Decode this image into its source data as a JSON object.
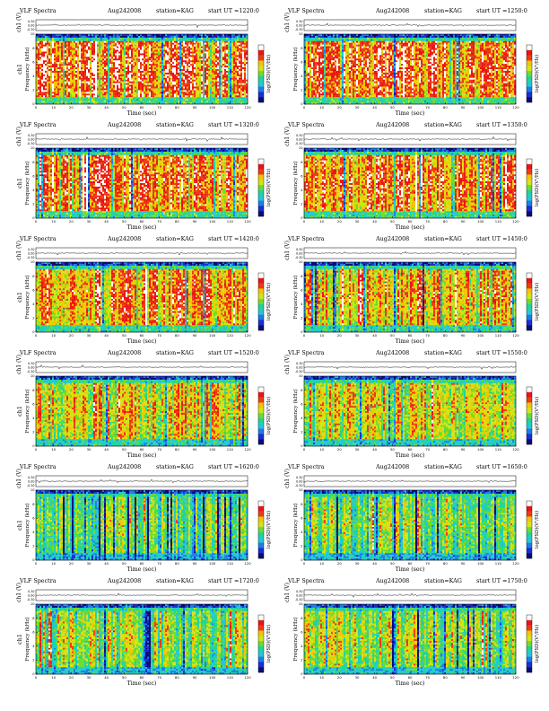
{
  "chart_data": [
    {
      "type": "heatmap",
      "title": "VLF  Spectra",
      "date": "Aug242008",
      "station": "station=KAG",
      "start_ut": "start  UT  =1220:0",
      "top_ylabel": "ch1 (V)",
      "top_ylim": [
        -0.3,
        0.3
      ],
      "top_yticks": [
        "0.30",
        "0.00",
        "-0.30"
      ],
      "ylabel": "Frequency  (kHz)",
      "ylim": [
        0,
        10
      ],
      "yticks": [
        "0",
        "2",
        "4",
        "6",
        "8",
        "10"
      ],
      "xlabel": "Time  (sec)",
      "xlim": [
        0,
        120
      ],
      "xticks": [
        "0",
        "10",
        "20",
        "30",
        "40",
        "50",
        "60",
        "70",
        "80",
        "90",
        "100",
        "110",
        "120"
      ],
      "colorbar_label": "log(PSD)(V²/Hz)",
      "colorbar_name": "ch1",
      "level": 0.85
    },
    {
      "type": "heatmap",
      "title": "VLF  Spectra",
      "date": "Aug242008",
      "station": "station=KAG",
      "start_ut": "start  UT  =1250:0",
      "top_ylabel": "ch1 (V)",
      "top_ylim": [
        -0.3,
        0.3
      ],
      "top_yticks": [
        "0.30",
        "0.00",
        "-0.30"
      ],
      "ylabel": "Frequency  (kHz)",
      "ylim": [
        0,
        10
      ],
      "yticks": [
        "0",
        "2",
        "4",
        "6",
        "8",
        "10"
      ],
      "xlabel": "Time  (sec)",
      "xlim": [
        0,
        120
      ],
      "xticks": [
        "0",
        "10",
        "20",
        "30",
        "40",
        "50",
        "60",
        "70",
        "80",
        "90",
        "100",
        "110",
        "120"
      ],
      "colorbar_label": "log(PSD)(V²/Hz)",
      "colorbar_name": "",
      "level": 0.83
    },
    {
      "type": "heatmap",
      "title": "VLF  Spectra",
      "date": "Aug242008",
      "station": "station=KAG",
      "start_ut": "start  UT  =1320:0",
      "top_ylabel": "ch1 (V)",
      "top_ylim": [
        -0.3,
        0.3
      ],
      "top_yticks": [
        "0.30",
        "0.00",
        "-0.30"
      ],
      "ylabel": "Frequency  (kHz)",
      "ylim": [
        0,
        10
      ],
      "yticks": [
        "0",
        "2",
        "4",
        "6",
        "8",
        "10"
      ],
      "xlabel": "Time  (sec)",
      "xlim": [
        0,
        120
      ],
      "xticks": [
        "0",
        "10",
        "20",
        "30",
        "40",
        "50",
        "60",
        "70",
        "80",
        "90",
        "100",
        "110",
        "120"
      ],
      "colorbar_label": "log(PSD)(V²/Hz)",
      "colorbar_name": "ch1",
      "level": 0.82
    },
    {
      "type": "heatmap",
      "title": "VLF  Spectra",
      "date": "Aug242008",
      "station": "station=KAG",
      "start_ut": "start  UT  =1350:0",
      "top_ylabel": "ch1 (V)",
      "top_ylim": [
        -0.3,
        0.3
      ],
      "top_yticks": [
        "0.30",
        "0.00",
        "-0.30"
      ],
      "ylabel": "Frequency  (kHz)",
      "ylim": [
        0,
        10
      ],
      "yticks": [
        "0",
        "2",
        "4",
        "6",
        "8",
        "10"
      ],
      "xlabel": "Time  (sec)",
      "xlim": [
        0,
        120
      ],
      "xticks": [
        "0",
        "10",
        "20",
        "30",
        "40",
        "50",
        "60",
        "70",
        "80",
        "90",
        "100",
        "110",
        "120"
      ],
      "colorbar_label": "log(PSD)(V²/Hz)",
      "colorbar_name": "",
      "level": 0.8
    },
    {
      "type": "heatmap",
      "title": "VLF  Spectra",
      "date": "Aug242008",
      "station": "station=KAG",
      "start_ut": "start  UT  =1420:0",
      "top_ylabel": "ch1 (V)",
      "top_ylim": [
        -0.3,
        0.3
      ],
      "top_yticks": [
        "0.30",
        "0.00",
        "-0.30"
      ],
      "ylabel": "Frequency  (kHz)",
      "ylim": [
        0,
        10
      ],
      "yticks": [
        "0",
        "2",
        "4",
        "6",
        "8",
        "10"
      ],
      "xlabel": "Time  (sec)",
      "xlim": [
        0,
        120
      ],
      "xticks": [
        "0",
        "10",
        "20",
        "30",
        "40",
        "50",
        "60",
        "70",
        "80",
        "90",
        "100",
        "110",
        "120"
      ],
      "colorbar_label": "log(PSD)(V²/Hz)",
      "colorbar_name": "ch1",
      "level": 0.76
    },
    {
      "type": "heatmap",
      "title": "VLF  Spectra",
      "date": "Aug242008",
      "station": "station=KAG",
      "start_ut": "start  UT  =1450:0",
      "top_ylabel": "ch1 (V)",
      "top_ylim": [
        -0.3,
        0.3
      ],
      "top_yticks": [
        "0.30",
        "0.00",
        "-0.30"
      ],
      "ylabel": "Frequency  (kHz)",
      "ylim": [
        0,
        10
      ],
      "yticks": [
        "0",
        "2",
        "4",
        "6",
        "8",
        "10"
      ],
      "xlabel": "Time  (sec)",
      "xlim": [
        0,
        120
      ],
      "xticks": [
        "0",
        "10",
        "20",
        "30",
        "40",
        "50",
        "60",
        "70",
        "80",
        "90",
        "100",
        "110",
        "120"
      ],
      "colorbar_label": "log(PSD)(V²/Hz)",
      "colorbar_name": "",
      "level": 0.72
    },
    {
      "type": "heatmap",
      "title": "VLF  Spectra",
      "date": "Aug242008",
      "station": "station=KAG",
      "start_ut": "start  UT  =1520:0",
      "top_ylabel": "ch1 (V)",
      "top_ylim": [
        -0.3,
        0.3
      ],
      "top_yticks": [
        "0.30",
        "0.00",
        "-0.30"
      ],
      "ylabel": "Frequency  (kHz)",
      "ylim": [
        0,
        10
      ],
      "yticks": [
        "0",
        "2",
        "4",
        "6",
        "8",
        "10"
      ],
      "xlabel": "Time  (sec)",
      "xlim": [
        0,
        120
      ],
      "xticks": [
        "0",
        "10",
        "20",
        "30",
        "40",
        "50",
        "60",
        "70",
        "80",
        "90",
        "100",
        "110",
        "120"
      ],
      "colorbar_label": "log(PSD)(V²/Hz)",
      "colorbar_name": "ch1",
      "level": 0.66
    },
    {
      "type": "heatmap",
      "title": "VLF  Spectra",
      "date": "Aug242008",
      "station": "station=KAG",
      "start_ut": "start  UT  =1550:0",
      "top_ylabel": "ch1 (V)",
      "top_ylim": [
        -0.3,
        0.3
      ],
      "top_yticks": [
        "0.30",
        "0.00",
        "-0.30"
      ],
      "ylabel": "Frequency  (kHz)",
      "ylim": [
        0,
        10
      ],
      "yticks": [
        "0",
        "2",
        "4",
        "6",
        "8",
        "10"
      ],
      "xlabel": "Time  (sec)",
      "xlim": [
        0,
        120
      ],
      "xticks": [
        "0",
        "10",
        "20",
        "30",
        "40",
        "50",
        "60",
        "70",
        "80",
        "90",
        "100",
        "110",
        "120"
      ],
      "colorbar_label": "log(PSD)(V²/Hz)",
      "colorbar_name": "",
      "level": 0.63
    },
    {
      "type": "heatmap",
      "title": "VLF  Spectra",
      "date": "Aug242008",
      "station": "station=KAG",
      "start_ut": "start  UT  =1620:0",
      "top_ylabel": "ch1 (V)",
      "top_ylim": [
        -0.3,
        0.3
      ],
      "top_yticks": [
        "0.30",
        "0.00",
        "-0.30"
      ],
      "ylabel": "Frequency  (kHz)",
      "ylim": [
        0,
        10
      ],
      "yticks": [
        "0",
        "2",
        "4",
        "6",
        "8",
        "10"
      ],
      "xlabel": "Time  (sec)",
      "xlim": [
        0,
        120
      ],
      "xticks": [
        "0",
        "10",
        "20",
        "30",
        "40",
        "50",
        "60",
        "70",
        "80",
        "90",
        "100",
        "110",
        "120"
      ],
      "colorbar_label": "log(PSD)(V²/Hz)",
      "colorbar_name": "ch1",
      "level": 0.5
    },
    {
      "type": "heatmap",
      "title": "VLF  Spectra",
      "date": "Aug242008",
      "station": "station=KAG",
      "start_ut": "start  UT  =1650:0",
      "top_ylabel": "ch1 (V)",
      "top_ylim": [
        -0.3,
        0.3
      ],
      "top_yticks": [
        "0.30",
        "0.00",
        "-0.30"
      ],
      "ylabel": "Frequency  (kHz)",
      "ylim": [
        0,
        10
      ],
      "yticks": [
        "0",
        "2",
        "4",
        "6",
        "8",
        "10"
      ],
      "xlabel": "Time  (sec)",
      "xlim": [
        0,
        120
      ],
      "xticks": [
        "0",
        "10",
        "20",
        "30",
        "40",
        "50",
        "60",
        "70",
        "80",
        "90",
        "100",
        "110",
        "120"
      ],
      "colorbar_label": "log(PSD)(V²/Hz)",
      "colorbar_name": "",
      "level": 0.52
    },
    {
      "type": "heatmap",
      "title": "VLF  Spectra",
      "date": "Aug242008",
      "station": "station=KAG",
      "start_ut": "start  UT  =1720:0",
      "top_ylabel": "ch1 (V)",
      "top_ylim": [
        -0.3,
        0.3
      ],
      "top_yticks": [
        "0.30",
        "0.00",
        "-0.30"
      ],
      "ylabel": "Frequency  (kHz)",
      "ylim": [
        0,
        10
      ],
      "yticks": [
        "0",
        "2",
        "4",
        "6",
        "8",
        "10"
      ],
      "xlabel": "Time  (sec)",
      "xlim": [
        0,
        120
      ],
      "xticks": [
        "0",
        "10",
        "20",
        "30",
        "40",
        "50",
        "60",
        "70",
        "80",
        "90",
        "100",
        "110",
        "120"
      ],
      "colorbar_label": "log(PSD)(V²/Hz)",
      "colorbar_name": "ch1",
      "level": 0.55
    },
    {
      "type": "heatmap",
      "title": "VLF  Spectra",
      "date": "Aug242008",
      "station": "station=KAG",
      "start_ut": "start  UT  =1750:0",
      "top_ylabel": "ch1 (V)",
      "top_ylim": [
        -0.3,
        0.3
      ],
      "top_yticks": [
        "0.30",
        "0.00",
        "-0.30"
      ],
      "ylabel": "Frequency  (kHz)",
      "ylim": [
        0,
        10
      ],
      "yticks": [
        "0",
        "2",
        "4",
        "6",
        "8",
        "10"
      ],
      "xlabel": "Time  (sec)",
      "xlim": [
        0,
        120
      ],
      "xticks": [
        "0",
        "10",
        "20",
        "30",
        "40",
        "50",
        "60",
        "70",
        "80",
        "90",
        "100",
        "110",
        "120"
      ],
      "colorbar_label": "log(PSD)(V²/Hz)",
      "colorbar_name": "",
      "level": 0.58
    }
  ],
  "colors": {
    "colormap": [
      "#ffffff",
      "#e81515",
      "#ee3b14",
      "#f5c400",
      "#cfe61a",
      "#6fdc2a",
      "#21d39a",
      "#22c8d8",
      "#1a7fe8",
      "#1b2fd0",
      "#0a0a7a"
    ],
    "trace": "#000000",
    "frame": "#000000"
  }
}
